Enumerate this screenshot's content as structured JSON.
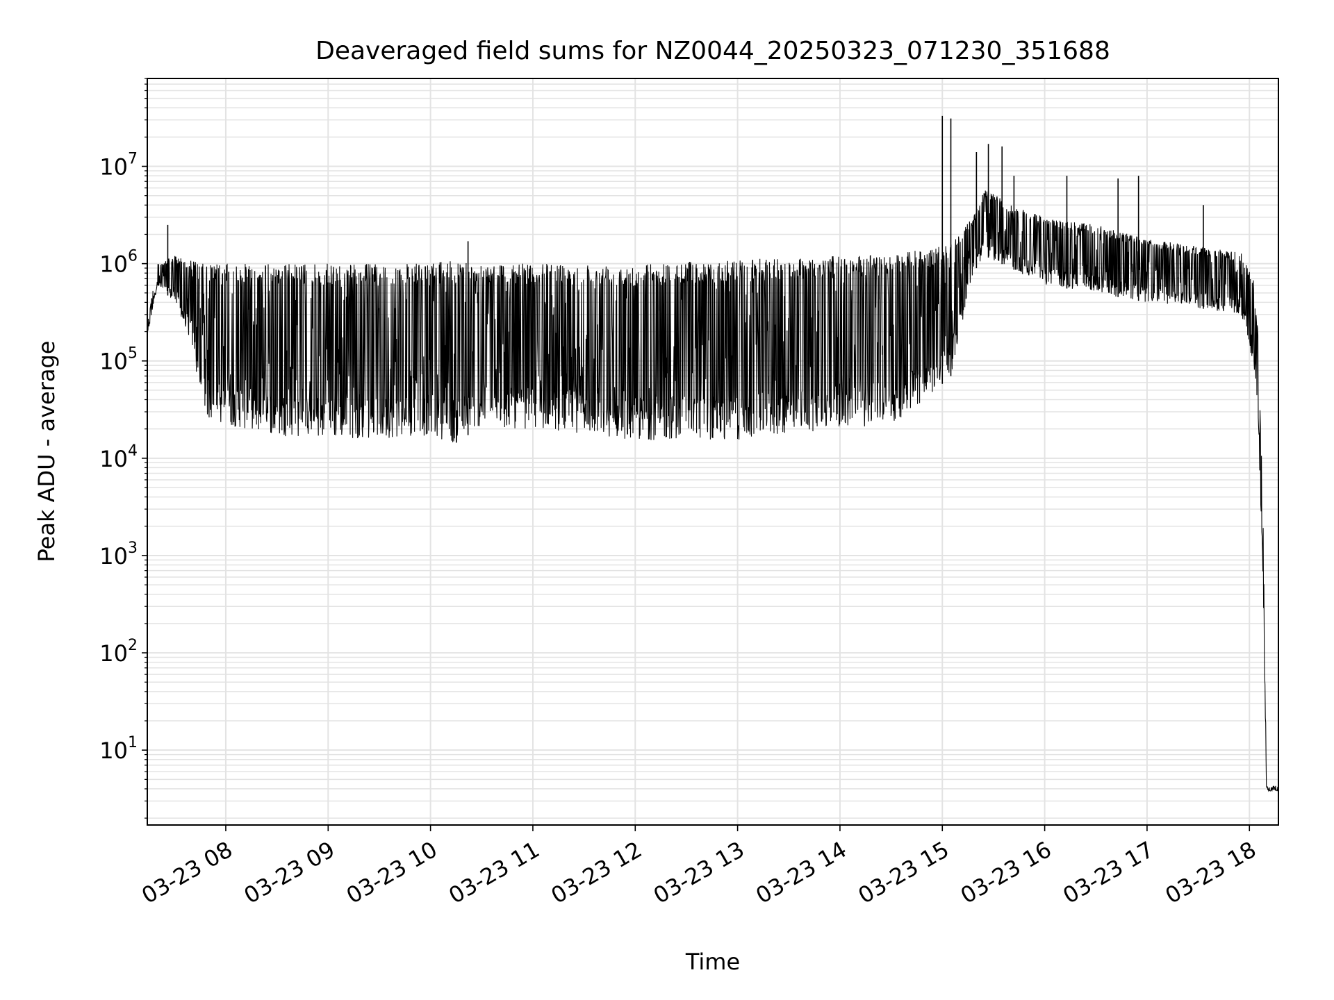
{
  "chart_data": {
    "type": "line",
    "title": "Deaveraged field sums for NZ0044_20250323_071230_351688",
    "xlabel": "Time",
    "ylabel": "Peak ADU - average",
    "yscale": "log",
    "ylim": [
      1.7,
      80000000
    ],
    "xlim": [
      "03-23 07:14",
      "03-23 18:17"
    ],
    "grid": true,
    "grid_color": "#e3e3e3",
    "line_color": "#000000",
    "x_ticks": [
      {
        "t": "03-23 08:00",
        "label": "03-23 08"
      },
      {
        "t": "03-23 09:00",
        "label": "03-23 09"
      },
      {
        "t": "03-23 10:00",
        "label": "03-23 10"
      },
      {
        "t": "03-23 11:00",
        "label": "03-23 11"
      },
      {
        "t": "03-23 12:00",
        "label": "03-23 12"
      },
      {
        "t": "03-23 13:00",
        "label": "03-23 13"
      },
      {
        "t": "03-23 14:00",
        "label": "03-23 14"
      },
      {
        "t": "03-23 15:00",
        "label": "03-23 15"
      },
      {
        "t": "03-23 16:00",
        "label": "03-23 16"
      },
      {
        "t": "03-23 17:00",
        "label": "03-23 17"
      },
      {
        "t": "03-23 18:00",
        "label": "03-23 18"
      }
    ],
    "y_ticks": [
      {
        "v": 10,
        "base": "10",
        "exp": "1"
      },
      {
        "v": 100,
        "base": "10",
        "exp": "2"
      },
      {
        "v": 1000,
        "base": "10",
        "exp": "3"
      },
      {
        "v": 10000,
        "base": "10",
        "exp": "4"
      },
      {
        "v": 100000,
        "base": "10",
        "exp": "5"
      },
      {
        "v": 1000000,
        "base": "10",
        "exp": "6"
      },
      {
        "v": 10000000,
        "base": "10",
        "exp": "7"
      }
    ],
    "series": [
      {
        "x": [
          "03-23 07:14",
          "03-23 07:20",
          "03-23 07:30",
          "03-23 07:40",
          "03-23 07:45",
          "03-23 07:50",
          "03-23 08:00",
          "03-23 08:30",
          "03-23 09:00",
          "03-23 09:30",
          "03-23 10:00",
          "03-23 10:15",
          "03-23 10:30",
          "03-23 10:45",
          "03-23 11:00",
          "03-23 11:30",
          "03-23 12:00",
          "03-23 12:30",
          "03-23 13:00",
          "03-23 13:30",
          "03-23 14:00",
          "03-23 14:30",
          "03-23 14:50",
          "03-23 15:05",
          "03-23 15:18",
          "03-23 15:25",
          "03-23 15:40",
          "03-23 16:00",
          "03-23 16:30",
          "03-23 17:00",
          "03-23 17:30",
          "03-23 17:55",
          "03-23 18:02",
          "03-23 18:05",
          "03-23 18:08",
          "03-23 18:10",
          "03-23 18:17"
        ],
        "low": [
          180000,
          600000,
          400000,
          150000,
          40000,
          25000,
          22000,
          17000,
          16000,
          16000,
          17000,
          14000,
          22000,
          20000,
          20000,
          18000,
          15000,
          16000,
          15000,
          18000,
          20000,
          22000,
          40000,
          70000,
          800000,
          1200000,
          900000,
          600000,
          500000,
          400000,
          350000,
          300000,
          100000,
          30000,
          500,
          3.8,
          3.8
        ],
        "high": [
          250000,
          1000000,
          1200000,
          1100000,
          1000000,
          1000000,
          1000000,
          1000000,
          1000000,
          1000000,
          1000000,
          1100000,
          1000000,
          1000000,
          1000000,
          1000000,
          1000000,
          1050000,
          1100000,
          1150000,
          1200000,
          1250000,
          1400000,
          1600000,
          3000000,
          6000000,
          4000000,
          3000000,
          2500000,
          1800000,
          1500000,
          1300000,
          800000,
          200000,
          3000,
          4.3,
          4.3
        ],
        "spikes": [
          {
            "t": "03-23 07:26",
            "v": 2500000
          },
          {
            "t": "03-23 10:22",
            "v": 1700000
          },
          {
            "t": "03-23 15:00",
            "v": 33000000
          },
          {
            "t": "03-23 15:05",
            "v": 31000000
          },
          {
            "t": "03-23 15:20",
            "v": 14000000
          },
          {
            "t": "03-23 15:27",
            "v": 17000000
          },
          {
            "t": "03-23 15:35",
            "v": 16000000
          },
          {
            "t": "03-23 15:42",
            "v": 8000000
          },
          {
            "t": "03-23 16:13",
            "v": 8000000
          },
          {
            "t": "03-23 16:43",
            "v": 7500000
          },
          {
            "t": "03-23 16:55",
            "v": 8000000
          },
          {
            "t": "03-23 17:33",
            "v": 4000000
          }
        ]
      }
    ]
  }
}
